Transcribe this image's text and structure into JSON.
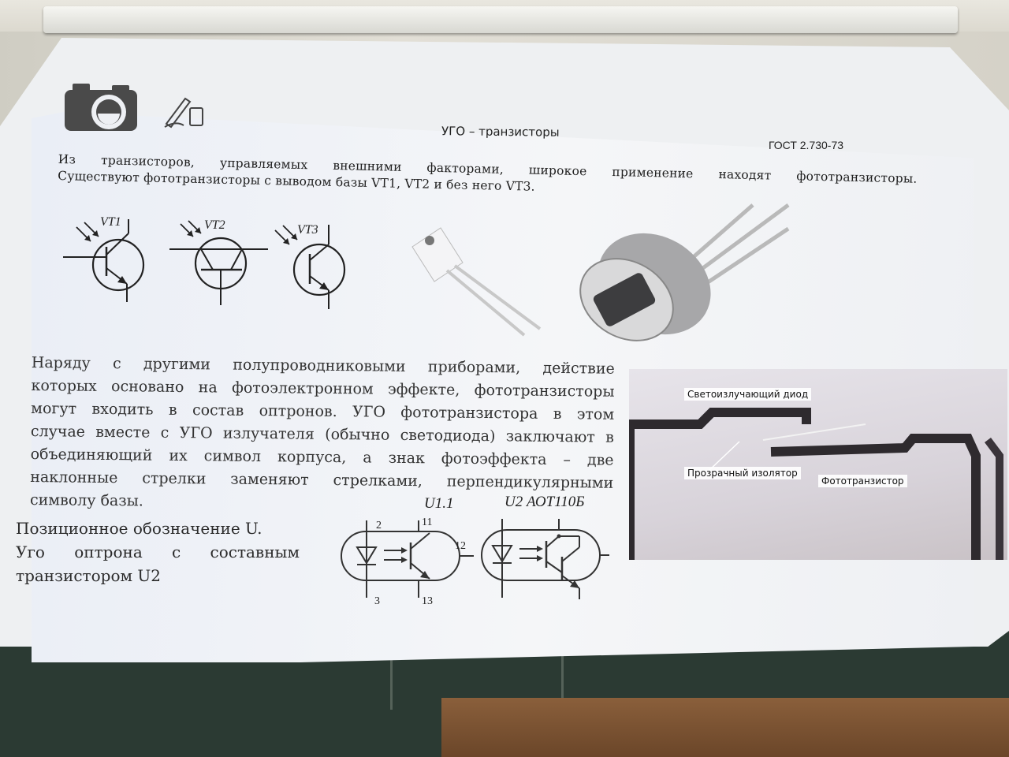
{
  "slide": {
    "title": "УГО – транзисторы",
    "gost": "ГОСТ 2.730-73",
    "intro_lines": [
      "Из транзисторов, управляемых внешними факторами, широкое применение находят фототранзисторы.",
      "Существуют фототранзисторы с выводом базы VT1, VT2 и без него VT3."
    ],
    "body_lines": [
      "Наряду с другими полупроводниковыми приборами, действие",
      "которых основано на фотоэлектронном эффекте, фототранзисторы",
      "могут входить в состав оптронов. УГО фототранзистора в этом",
      "случае вместе с УГО излучателя (обычно светодиода) заключают в",
      "объединяющий их символ корпуса, а знак фотоэффекта – две",
      "наклонные стрелки заменяют стрелками, перпендикулярными",
      "символу базы."
    ],
    "note_lines": [
      "Позиционное обозначение U.",
      "Уго оптрона с составным",
      "транзистором U2"
    ],
    "transistors": [
      "VT1",
      "VT2",
      "VT3"
    ],
    "optocoupler_1": {
      "label": "U1.1",
      "pins": [
        "2",
        "11",
        "12",
        "3",
        "13"
      ]
    },
    "optocoupler_2": {
      "label": "U2 АОТ110Б"
    },
    "photo_labels": {
      "led": "Светоизлучающий диод",
      "insulator": "Прозрачный изолятор",
      "phototransistor": "Фототранзистор"
    }
  },
  "icons": [
    "camera-icon",
    "pen-tablet-icon"
  ]
}
